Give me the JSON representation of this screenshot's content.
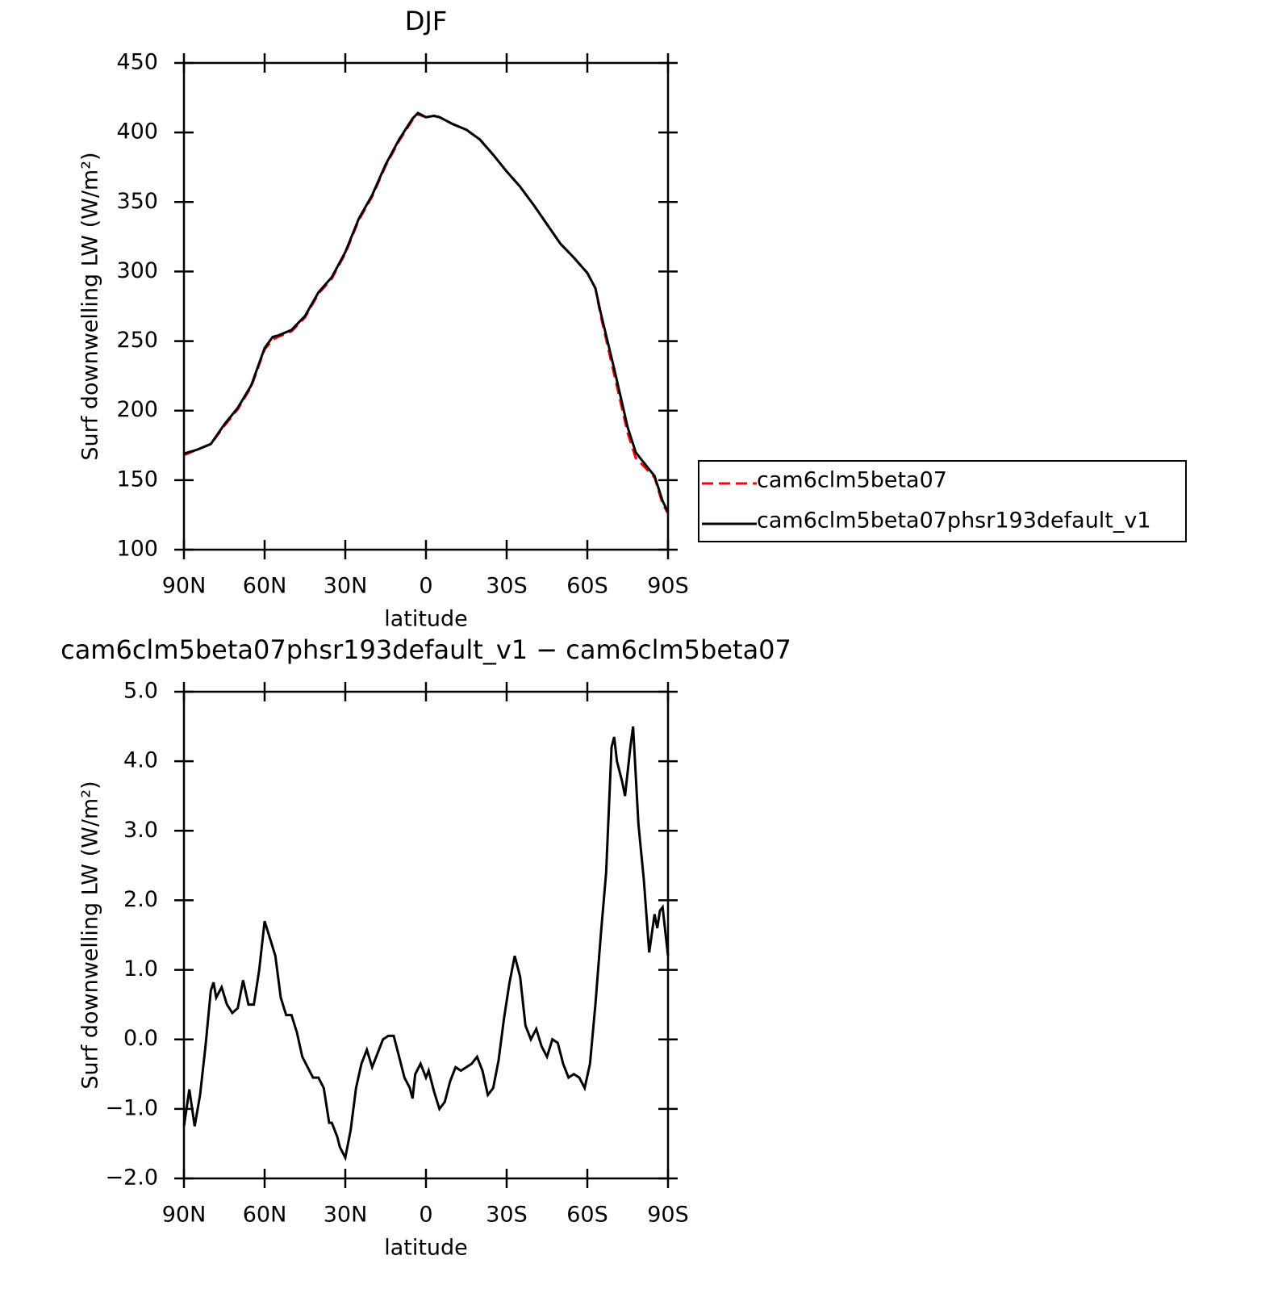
{
  "chart_data": [
    {
      "type": "line",
      "title": "DJF",
      "xlabel": "latitude",
      "ylabel": "Surf downwelling LW (W/m²)",
      "x": [
        90,
        85,
        80,
        75,
        70,
        65,
        60,
        57,
        55,
        50,
        45,
        40,
        35,
        30,
        25,
        20,
        15,
        10,
        5,
        3,
        0,
        -3,
        -5,
        -10,
        -15,
        -20,
        -25,
        -30,
        -35,
        -40,
        -45,
        -50,
        -55,
        -60,
        -63,
        -65,
        -70,
        -75,
        -78,
        -80,
        -85,
        -88,
        -90
      ],
      "series": [
        {
          "name": "cam6clm5beta07",
          "color": "#ff0000",
          "dashed": true,
          "values": [
            168,
            172,
            176,
            189,
            201,
            217,
            244,
            251,
            253,
            257,
            267,
            284,
            295,
            313,
            337,
            354,
            376,
            394,
            409,
            413,
            411,
            412,
            411,
            406,
            402,
            395,
            384,
            372,
            361,
            348,
            334,
            320,
            310,
            299,
            288,
            268,
            226,
            184,
            166,
            162,
            152,
            133,
            126
          ]
        },
        {
          "name": "cam6clm5beta07phsr193default_v1",
          "color": "#000000",
          "dashed": false,
          "values": [
            169,
            172,
            176,
            190,
            202,
            218,
            245,
            253,
            254,
            258,
            268,
            285,
            296,
            314,
            338,
            355,
            377,
            395,
            410,
            414,
            411,
            412,
            411,
            406,
            402,
            395,
            384,
            372,
            361,
            348,
            334,
            320,
            310,
            299,
            288,
            270,
            230,
            188,
            170,
            165,
            153,
            135,
            127
          ]
        }
      ],
      "xlim": [
        90,
        -90
      ],
      "xticks": [
        {
          "value": 90,
          "label": "90N"
        },
        {
          "value": 60,
          "label": "60N"
        },
        {
          "value": 30,
          "label": "30N"
        },
        0,
        {
          "value": -30,
          "label": "30S"
        },
        {
          "value": -60,
          "label": "60S"
        },
        {
          "value": -90,
          "label": "90S"
        }
      ],
      "ylim": [
        100,
        450
      ],
      "yticks": [
        100,
        150,
        200,
        250,
        300,
        350,
        400,
        450
      ],
      "legend": "right"
    },
    {
      "type": "line",
      "title": "cam6clm5beta07phsr193default_v1 − cam6clm5beta07",
      "xlabel": "latitude",
      "ylabel": "Surf downwelling LW (W/m²)",
      "x": [
        90,
        88,
        86,
        84,
        82,
        80,
        79,
        78,
        76,
        74,
        72,
        70,
        68,
        66,
        64,
        62,
        60,
        58,
        56,
        54,
        52,
        50,
        48,
        46,
        44,
        42,
        40,
        38,
        36,
        35,
        33,
        32,
        30,
        28,
        26,
        24,
        22,
        20,
        18,
        16,
        14,
        12,
        10,
        8,
        6,
        5,
        4,
        2,
        0,
        -1,
        -3,
        -5,
        -7,
        -9,
        -11,
        -13,
        -15,
        -17,
        -19,
        -21,
        -23,
        -25,
        -27,
        -29,
        -31,
        -33,
        -35,
        -37,
        -39,
        -41,
        -43,
        -45,
        -47,
        -49,
        -51,
        -53,
        -55,
        -57,
        -59,
        -61,
        -63,
        -65,
        -67,
        -69,
        -70,
        -71,
        -73,
        -74,
        -76,
        -77,
        -79,
        -81,
        -83,
        -85,
        -86,
        -87,
        -88,
        -90
      ],
      "color": "#000000",
      "values": [
        -1.25,
        -0.72,
        -1.25,
        -0.8,
        -0.1,
        0.7,
        0.82,
        0.6,
        0.75,
        0.5,
        0.38,
        0.45,
        0.85,
        0.5,
        0.5,
        1.0,
        1.7,
        1.45,
        1.2,
        0.6,
        0.35,
        0.35,
        0.1,
        -0.25,
        -0.4,
        -0.55,
        -0.55,
        -0.7,
        -1.2,
        -1.2,
        -1.4,
        -1.55,
        -1.7,
        -1.3,
        -0.7,
        -0.35,
        -0.15,
        -0.4,
        -0.2,
        0.0,
        0.05,
        0.05,
        -0.25,
        -0.55,
        -0.7,
        -0.85,
        -0.5,
        -0.35,
        -0.55,
        -0.45,
        -0.75,
        -1.0,
        -0.9,
        -0.6,
        -0.4,
        -0.45,
        -0.4,
        -0.35,
        -0.25,
        -0.45,
        -0.8,
        -0.7,
        -0.3,
        0.3,
        0.8,
        1.2,
        0.9,
        0.2,
        0.0,
        0.15,
        -0.1,
        -0.25,
        0.0,
        -0.05,
        -0.35,
        -0.55,
        -0.5,
        -0.55,
        -0.7,
        -0.35,
        0.5,
        1.5,
        2.4,
        4.2,
        4.35,
        4.0,
        3.7,
        3.5,
        4.2,
        4.5,
        3.1,
        2.3,
        1.25,
        1.8,
        1.6,
        1.85,
        1.9,
        1.2
      ],
      "xlim": [
        90,
        -90
      ],
      "xticks": [
        {
          "value": 90,
          "label": "90N"
        },
        {
          "value": 60,
          "label": "60N"
        },
        {
          "value": 30,
          "label": "30N"
        },
        0,
        {
          "value": -30,
          "label": "30S"
        },
        {
          "value": -60,
          "label": "60S"
        },
        {
          "value": -90,
          "label": "90S"
        }
      ],
      "ylim": [
        -2,
        5
      ],
      "yticks": [
        {
          "value": -2,
          "label": "−2.0"
        },
        {
          "value": -1,
          "label": "−1.0"
        },
        {
          "value": 0,
          "label": "0.0"
        },
        {
          "value": 1,
          "label": "1.0"
        },
        {
          "value": 2,
          "label": "2.0"
        },
        {
          "value": 3,
          "label": "3.0"
        },
        {
          "value": 4,
          "label": "4.0"
        },
        {
          "value": 5,
          "label": "5.0"
        }
      ]
    }
  ]
}
